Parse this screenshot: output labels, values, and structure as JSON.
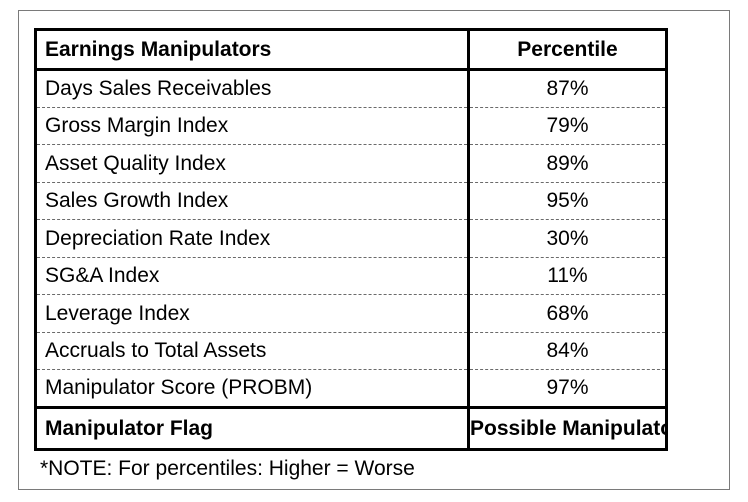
{
  "table": {
    "header": {
      "label": "Earnings Manipulators",
      "value": "Percentile"
    },
    "rows": [
      {
        "label": "Days Sales Receivables",
        "value": "87%"
      },
      {
        "label": "Gross Margin Index",
        "value": "79%"
      },
      {
        "label": "Asset Quality Index",
        "value": "89%"
      },
      {
        "label": "Sales Growth Index",
        "value": "95%"
      },
      {
        "label": "Depreciation Rate Index",
        "value": "30%"
      },
      {
        "label": "SG&A Index",
        "value": "11%"
      },
      {
        "label": "Leverage Index",
        "value": "68%"
      },
      {
        "label": "Accruals to Total Assets",
        "value": "84%"
      },
      {
        "label": "Manipulator Score (PROBM)",
        "value": "97%"
      }
    ],
    "flag": {
      "label": "Manipulator Flag",
      "value": "Possible Manipulator"
    }
  },
  "note": "*NOTE: For percentiles: Higher = Worse"
}
